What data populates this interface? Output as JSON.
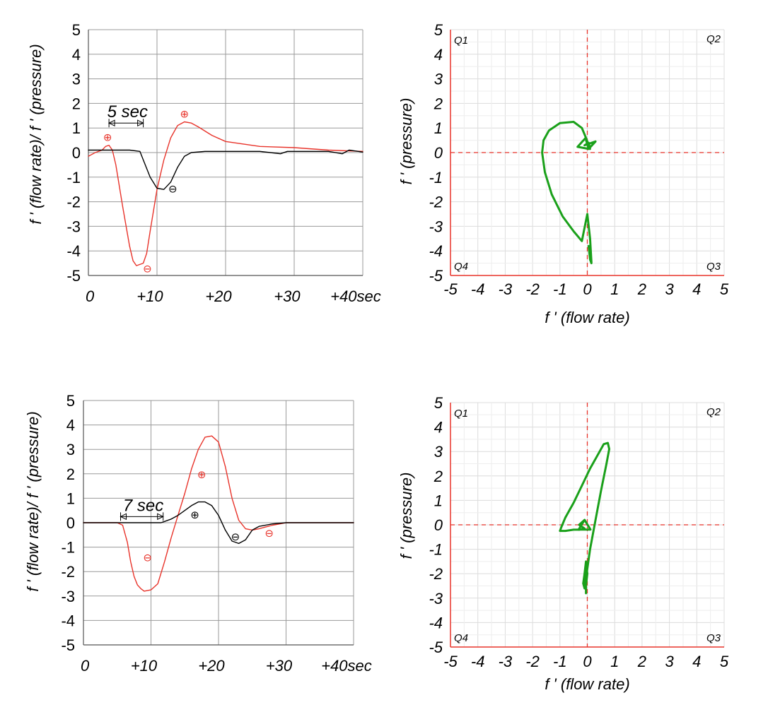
{
  "chart_data": [
    {
      "id": "top-left",
      "type": "line",
      "ylabel": "f ' (flow rate)/ f ' (pressure)",
      "xlabel": "",
      "x_tick_labels": [
        "0",
        "+10",
        "+20",
        "+30",
        "+40sec"
      ],
      "xlim": [
        0,
        40
      ],
      "ylim": [
        -5,
        5
      ],
      "y_ticks": [
        -5,
        -4,
        -3,
        -2,
        -1,
        0,
        1,
        2,
        3,
        4,
        5
      ],
      "grid": true,
      "annotation": {
        "label": "5 sec",
        "x_start": 3,
        "x_end": 8,
        "y": 1.2
      },
      "series": [
        {
          "color": "#e8332a",
          "x": [
            0,
            1,
            2,
            2.5,
            3,
            3.5,
            4,
            5,
            6,
            6.5,
            7,
            8,
            8.5,
            9,
            10,
            11,
            12,
            13,
            14,
            15,
            16,
            18,
            20,
            25,
            30,
            35,
            40
          ],
          "y": [
            -0.15,
            0,
            0.1,
            0.25,
            0.3,
            0.1,
            -0.5,
            -2.2,
            -3.8,
            -4.4,
            -4.6,
            -4.5,
            -4.1,
            -3.2,
            -1.5,
            -0.3,
            0.6,
            1.1,
            1.25,
            1.2,
            1.05,
            0.7,
            0.45,
            0.25,
            0.2,
            0.1,
            0.05
          ]
        },
        {
          "color": "#000000",
          "x": [
            0,
            3,
            6,
            7.5,
            8,
            9,
            10,
            11,
            12,
            13,
            14,
            15,
            17,
            20,
            25,
            28,
            29,
            30,
            35,
            37,
            38,
            40
          ],
          "y": [
            0.1,
            0.1,
            0.1,
            0.05,
            -0.3,
            -1.0,
            -1.45,
            -1.5,
            -1.2,
            -0.6,
            -0.15,
            0,
            0.05,
            0.05,
            0.05,
            -0.05,
            0.05,
            0.05,
            0.05,
            -0.05,
            0.1,
            0.02
          ]
        }
      ],
      "markers": [
        {
          "symbol": "⊕",
          "color": "#e8332a",
          "x": 2.8,
          "y": 0.65
        },
        {
          "symbol": "⊕",
          "color": "#e8332a",
          "x": 14,
          "y": 1.6
        },
        {
          "symbol": "⊖",
          "color": "#e8332a",
          "x": 8.6,
          "y": -4.7
        },
        {
          "symbol": "⊖",
          "color": "#000000",
          "x": 12.3,
          "y": -1.45
        }
      ]
    },
    {
      "id": "top-right",
      "type": "line",
      "xlabel": "f ' (flow rate)",
      "ylabel": "f ' (pressure)",
      "xlim": [
        -5,
        5
      ],
      "ylim": [
        -5,
        5
      ],
      "x_ticks": [
        -5,
        -4,
        -3,
        -2,
        -1,
        0,
        1,
        2,
        3,
        4,
        5
      ],
      "y_ticks": [
        -5,
        -4,
        -3,
        -2,
        -1,
        0,
        1,
        2,
        3,
        4,
        5
      ],
      "grid": true,
      "quadrants": [
        "Q1",
        "Q2",
        "Q3",
        "Q4"
      ],
      "series": [
        {
          "color": "#1aa01a",
          "x": [
            0.05,
            0.1,
            0.15,
            0.15,
            0.1,
            0,
            -0.2,
            -0.5,
            -0.9,
            -1.3,
            -1.55,
            -1.65,
            -1.6,
            -1.4,
            -1.0,
            -0.5,
            -0.2,
            -0.05,
            0.05,
            0.1,
            0.05,
            -0.1,
            0.3,
            0.05
          ],
          "y": [
            -3.8,
            -4.35,
            -4.5,
            -4.45,
            -3.5,
            -2.5,
            -3.6,
            -3.2,
            -2.6,
            -1.7,
            -0.8,
            0,
            0.5,
            0.9,
            1.2,
            1.25,
            1.0,
            0.6,
            0.3,
            0.15,
            0.4,
            0.3,
            0.45,
            0.15
          ]
        }
      ]
    },
    {
      "id": "bottom-left",
      "type": "line",
      "ylabel": "f ' (flow rate)/ f ' (pressure)",
      "xlabel": "",
      "x_tick_labels": [
        "0",
        "+10",
        "+20",
        "+30",
        "+40sec"
      ],
      "xlim": [
        0,
        40
      ],
      "ylim": [
        -5,
        5
      ],
      "y_ticks": [
        -5,
        -4,
        -3,
        -2,
        -1,
        0,
        1,
        2,
        3,
        4,
        5
      ],
      "grid": true,
      "annotation": {
        "label": "7 sec",
        "x_start": 5.5,
        "x_end": 11.8,
        "y": 0.25
      },
      "series": [
        {
          "color": "#e8332a",
          "x": [
            0,
            5,
            5.8,
            6.5,
            7,
            7.5,
            8,
            8.5,
            9,
            10,
            11,
            12,
            13,
            14,
            15,
            16,
            17,
            18,
            19,
            20,
            21,
            22,
            23,
            24,
            25,
            26,
            28,
            30,
            35,
            40
          ],
          "y": [
            0,
            0,
            -0.1,
            -0.8,
            -1.6,
            -2.2,
            -2.55,
            -2.7,
            -2.8,
            -2.75,
            -2.5,
            -1.6,
            -0.6,
            0.3,
            1.2,
            2.2,
            3.0,
            3.5,
            3.55,
            3.3,
            2.3,
            1.0,
            0.1,
            -0.25,
            -0.3,
            -0.25,
            -0.1,
            0,
            0,
            0
          ]
        },
        {
          "color": "#000000",
          "x": [
            0,
            10,
            11.5,
            12,
            13,
            14,
            15,
            16,
            17,
            18,
            19,
            20,
            21,
            22,
            23,
            24,
            25,
            26,
            28,
            30,
            40
          ],
          "y": [
            0,
            0,
            0,
            0.05,
            0.15,
            0.3,
            0.5,
            0.7,
            0.85,
            0.85,
            0.7,
            0.3,
            -0.3,
            -0.75,
            -0.85,
            -0.7,
            -0.3,
            -0.15,
            -0.05,
            0,
            0
          ]
        }
      ],
      "markers": [
        {
          "symbol": "⊕",
          "color": "#e8332a",
          "x": 17.5,
          "y": 2.0
        },
        {
          "symbol": "⊕",
          "color": "#000000",
          "x": 16.5,
          "y": 0.35
        },
        {
          "symbol": "⊖",
          "color": "#e8332a",
          "x": 9.5,
          "y": -1.4
        },
        {
          "symbol": "⊖",
          "color": "#000000",
          "x": 22.5,
          "y": -0.55
        },
        {
          "symbol": "⊖",
          "color": "#e8332a",
          "x": 27.5,
          "y": -0.4
        }
      ]
    },
    {
      "id": "bottom-right",
      "type": "line",
      "xlabel": "f ' (flow rate)",
      "ylabel": "f ' (pressure)",
      "xlim": [
        -5,
        5
      ],
      "ylim": [
        -5,
        5
      ],
      "x_ticks": [
        -5,
        -4,
        -3,
        -2,
        -1,
        0,
        1,
        2,
        3,
        4,
        5
      ],
      "y_ticks": [
        -5,
        -4,
        -3,
        -2,
        -1,
        0,
        1,
        2,
        3,
        4,
        5
      ],
      "grid": true,
      "quadrants": [
        "Q1",
        "Q2",
        "Q3",
        "Q4"
      ],
      "series": [
        {
          "color": "#1aa01a",
          "x": [
            -0.05,
            -0.05,
            0,
            -0.05,
            -0.1,
            -0.15,
            -0.1,
            0.1,
            0.3,
            0.5,
            0.7,
            0.8,
            0.75,
            0.6,
            0.4,
            0.1,
            -0.2,
            -0.5,
            -0.8,
            -0.95,
            -1.0,
            -0.8,
            -0.5,
            -0.3,
            -0.1,
            -0.3,
            -0.1
          ],
          "y": [
            -2.8,
            -2.5,
            -2.0,
            -1.5,
            -2.0,
            -2.4,
            -2.6,
            -1.0,
            0.2,
            1.4,
            2.5,
            3.1,
            3.35,
            3.3,
            2.9,
            2.3,
            1.6,
            0.9,
            0.3,
            -0.1,
            -0.25,
            -0.25,
            -0.2,
            -0.2,
            -0.15,
            0,
            0.2
          ]
        }
      ]
    }
  ]
}
